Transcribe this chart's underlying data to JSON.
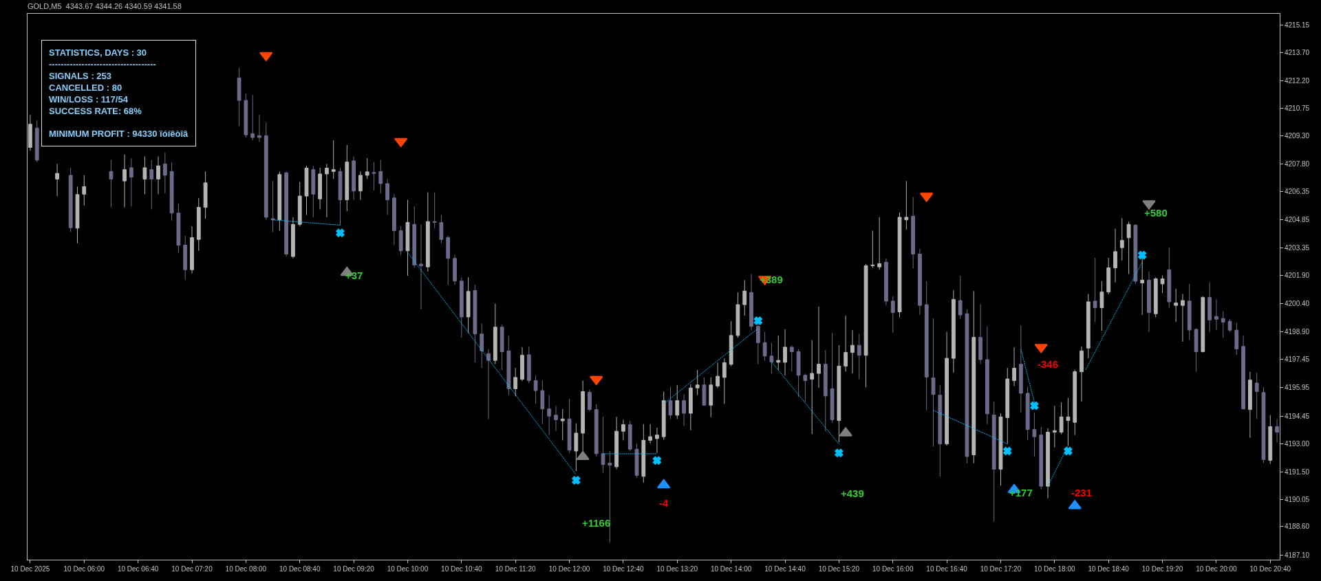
{
  "chart_data": {
    "type": "candlestick",
    "title": "GOLD,M5  4343.67 4344.26 4340.59 4341.58",
    "annotations": [
      "STATISTICS, DAYS : 30",
      "------------------------------------",
      "SIGNALS : 253",
      "CANCELLED : 80",
      "WIN/LOSS : 117/54",
      "SUCCESS RATE: 68%",
      "MINIMUM PROFIT : 94330 ïóíêòîâ",
      {
        "text": "+37",
        "x": "2025-12-10T09:20",
        "y": 4201.9
      },
      {
        "text": "+389",
        "x": "2025-12-10T14:30",
        "y": 4201.7
      },
      {
        "text": "+177",
        "x": "2025-12-10T17:35",
        "y": 4190.4
      },
      "+1166",
      "-4",
      "+439",
      "-346",
      "-231",
      "+580"
    ],
    "colors": [
      "#b4b4b4",
      "#6b6b8a",
      "#b4b4b4",
      "#6b6b8a",
      "#b4b4b4",
      "#b4b4b4",
      "#6b6b8a",
      "#b4b4b4",
      "#6b6b8a",
      "#b4b4b4",
      "#6b6b8a",
      "#b4b4b4",
      "#6b6b8a",
      "#6b6b8a",
      "#6b6b8a",
      "#6b6b8a",
      "#b4b4b4",
      "#b4b4b4",
      "#b4b4b4",
      "#6b6b8a",
      "#6b6b8a",
      "#6b6b8a",
      "#6b6b8a",
      "#6b6b8a",
      "#6b6b8a",
      "#b4b4b4",
      "#6b6b8a",
      "#b4b4b4",
      "#b4b4b4",
      "#b4b4b4",
      "#6b6b8a",
      "#b4b4b4",
      "#b4b4b4",
      "#b4b4b4",
      "#6b6b8a",
      "#b4b4b4",
      "#6b6b8a",
      "#b4b4b4",
      "#b4b4b4",
      "#6b6b8a",
      "#6b6b8a",
      "#6b6b8a",
      "#6b6b8a",
      "#6b6b8a",
      "#b4b4b4",
      "#6b6b8a",
      "#6b6b8a",
      "#b4b4b4",
      "#6b6b8a",
      "#6b6b8a",
      "#6b6b8a",
      "#6b6b8a",
      "#6b6b8a",
      "#b4b4b4",
      "#6b6b8a",
      "#6b6b8a",
      "#6b6b8a",
      "#b4b4b4",
      "#6b6b8a",
      "#6b6b8a",
      "#b4b4b4",
      "#b4b4b4",
      "#6b6b8a",
      "#6b6b8a",
      "#6b6b8a",
      "#6b6b8a",
      "#6b6b8a",
      "#b4b4b4",
      "#6b6b8a",
      "#b4b4b4",
      "#b4b4b4",
      "#6b6b8a",
      "#6b6b8a",
      "#6b6b8a",
      "#6b6b8a",
      "#b4b4b4",
      "#b4b4b4",
      "#6b6b8a",
      "#6b6b8a",
      "#b4b4b4",
      "#b4b4b4",
      "#b4b4b4",
      "#b4b4b4",
      "#6b6b8a",
      "#b4b4b4",
      "#6b6b8a",
      "#b4b4b4",
      "#b4b4b4",
      "#6b6b8a",
      "#b4b4b4",
      "#b4b4b4",
      "#b4b4b4",
      "#b4b4b4",
      "#b4b4b4",
      "#b4b4b4",
      "#6b6b8a",
      "#6b6b8a",
      "#6b6b8a",
      "#6b6b8a",
      "#b4b4b4",
      "#b4b4b4",
      "#6b6b8a",
      "#6b6b8a",
      "#6b6b8a",
      "#b4b4b4",
      "#b4b4b4",
      "#6b6b8a",
      "#6b6b8a",
      "#b4b4b4",
      "#b4b4b4",
      "#b4b4b4",
      "#6b6b8a",
      "#b4b4b4",
      "#b4b4b4",
      "#b4b4b4",
      "#6b6b8a",
      "#6b6b8a",
      "#b4b4b4",
      "#b4b4b4",
      "#6b6b8a",
      "#6b6b8a",
      "#6b6b8a",
      "#6b6b8a",
      "#6b6b8a",
      "#b4b4b4",
      "#b4b4b4",
      "#6b6b8a",
      "#6b6b8a",
      "#b4b4b4",
      "#6b6b8a",
      "#6b6b8a",
      "#6b6b8a",
      "#b4b4b4",
      "#b4b4b4",
      "#b4b4b4",
      "#6b6b8a",
      "#6b6b8a",
      "#6b6b8a",
      "#6b6b8a",
      "#b4b4b4",
      "#b4b4b4",
      "#b4b4b4",
      "#b4b4b4",
      "#b4b4b4",
      "#b4b4b4",
      "#b4b4b4",
      "#6b6b8a",
      "#b4b4b4",
      "#b4b4b4",
      "#b4b4b4",
      "#b4b4b4",
      "#b4b4b4",
      "#6b6b8a",
      "#b4b4b4",
      "#6b6b8a",
      "#b4b4b4",
      "#b4b4b4",
      "#6b6b8a",
      "#b4b4b4",
      "#b4b4b4",
      "#6b6b8a",
      "#6b6b8a",
      "#b4b4b4",
      "#6b6b8a",
      "#6b6b8a",
      "#6b6b8a",
      "#6b6b8a",
      "#6b6b8a",
      "#6b6b8a",
      "#b4b4b4",
      "#6b6b8a",
      "#6b6b8a",
      "#b4b4b4",
      "#6b6b8a"
    ],
    "x": [
      "2025-12-10T05:20",
      "2025-12-10T05:25",
      "2025-12-10T05:40",
      "2025-12-10T05:50",
      "2025-12-10T05:55",
      "2025-12-10T06:00",
      "2025-12-10T06:20",
      "2025-12-10T06:30",
      "2025-12-10T06:35",
      "2025-12-10T06:45",
      "2025-12-10T06:50",
      "2025-12-10T06:55",
      "2025-12-10T07:00",
      "2025-12-10T07:05",
      "2025-12-10T07:10",
      "2025-12-10T07:15",
      "2025-12-10T07:20",
      "2025-12-10T07:25",
      "2025-12-10T07:30",
      "2025-12-10T07:55",
      "2025-12-10T08:00",
      "2025-12-10T08:05",
      "2025-12-10T08:10",
      "2025-12-10T08:15",
      "2025-12-10T08:20",
      "2025-12-10T08:25",
      "2025-12-10T08:30",
      "2025-12-10T08:35",
      "2025-12-10T08:40",
      "2025-12-10T08:45",
      "2025-12-10T08:50",
      "2025-12-10T08:55",
      "2025-12-10T09:00",
      "2025-12-10T09:05",
      "2025-12-10T09:10",
      "2025-12-10T09:15",
      "2025-12-10T09:20",
      "2025-12-10T09:25",
      "2025-12-10T09:30",
      "2025-12-10T09:35",
      "2025-12-10T09:40",
      "2025-12-10T09:45",
      "2025-12-10T09:50",
      "2025-12-10T09:55",
      "2025-12-10T10:00",
      "2025-12-10T10:05",
      "2025-12-10T10:10",
      "2025-12-10T10:15",
      "2025-12-10T10:20",
      "2025-12-10T10:25",
      "2025-12-10T10:30",
      "2025-12-10T10:35",
      "2025-12-10T10:40",
      "2025-12-10T10:45",
      "2025-12-10T10:50",
      "2025-12-10T10:55",
      "2025-12-10T11:00",
      "2025-12-10T11:05",
      "2025-12-10T11:10",
      "2025-12-10T11:15",
      "2025-12-10T11:20",
      "2025-12-10T11:25",
      "2025-12-10T11:30",
      "2025-12-10T11:35",
      "2025-12-10T11:40",
      "2025-12-10T11:45",
      "2025-12-10T11:50",
      "2025-12-10T11:55",
      "2025-12-10T12:00",
      "2025-12-10T12:05",
      "2025-12-10T12:10",
      "2025-12-10T12:15",
      "2025-12-10T12:20",
      "2025-12-10T12:25",
      "2025-12-10T12:30",
      "2025-12-10T12:35",
      "2025-12-10T12:40",
      "2025-12-10T12:45",
      "2025-12-10T12:50",
      "2025-12-10T12:55",
      "2025-12-10T13:00",
      "2025-12-10T13:05",
      "2025-12-10T13:10",
      "2025-12-10T13:15",
      "2025-12-10T13:20",
      "2025-12-10T13:25",
      "2025-12-10T13:30",
      "2025-12-10T13:35",
      "2025-12-10T13:40",
      "2025-12-10T13:45",
      "2025-12-10T13:50",
      "2025-12-10T13:55",
      "2025-12-10T14:00",
      "2025-12-10T14:05",
      "2025-12-10T14:10",
      "2025-12-10T14:15",
      "2025-12-10T14:20",
      "2025-12-10T14:25",
      "2025-12-10T14:30",
      "2025-12-10T14:35",
      "2025-12-10T14:40",
      "2025-12-10T14:45",
      "2025-12-10T14:50",
      "2025-12-10T14:55",
      "2025-12-10T15:00",
      "2025-12-10T15:05",
      "2025-12-10T15:10",
      "2025-12-10T15:15",
      "2025-12-10T15:20",
      "2025-12-10T15:25",
      "2025-12-10T15:30",
      "2025-12-10T15:35",
      "2025-12-10T15:40",
      "2025-12-10T15:45",
      "2025-12-10T15:50",
      "2025-12-10T15:55",
      "2025-12-10T16:00",
      "2025-12-10T16:05",
      "2025-12-10T16:10",
      "2025-12-10T16:15",
      "2025-12-10T16:20",
      "2025-12-10T16:25",
      "2025-12-10T16:30",
      "2025-12-10T16:35",
      "2025-12-10T16:40",
      "2025-12-10T16:45",
      "2025-12-10T16:50",
      "2025-12-10T16:55",
      "2025-12-10T17:00",
      "2025-12-10T17:05",
      "2025-12-10T17:10",
      "2025-12-10T17:15",
      "2025-12-10T17:20",
      "2025-12-10T17:25",
      "2025-12-10T17:30",
      "2025-12-10T17:35",
      "2025-12-10T17:40",
      "2025-12-10T17:45",
      "2025-12-10T17:50",
      "2025-12-10T17:55",
      "2025-12-10T18:00",
      "2025-12-10T18:05",
      "2025-12-10T18:10",
      "2025-12-10T18:15",
      "2025-12-10T18:20",
      "2025-12-10T18:25",
      "2025-12-10T18:30",
      "2025-12-10T18:35",
      "2025-12-10T18:40",
      "2025-12-10T18:45",
      "2025-12-10T18:50",
      "2025-12-10T18:55",
      "2025-12-10T19:00",
      "2025-12-10T19:05",
      "2025-12-10T19:10",
      "2025-12-10T19:15",
      "2025-12-10T19:20",
      "2025-12-10T19:25",
      "2025-12-10T19:30",
      "2025-12-10T19:35",
      "2025-12-10T19:40",
      "2025-12-10T19:45",
      "2025-12-10T19:50",
      "2025-12-10T19:55",
      "2025-12-10T20:00",
      "2025-12-10T20:05",
      "2025-12-10T20:10",
      "2025-12-10T20:15",
      "2025-12-10T20:20",
      "2025-12-10T20:25",
      "2025-12-10T20:30",
      "2025-12-10T20:35",
      "2025-12-10T20:40",
      "2025-12-10T20:45"
    ],
    "ohlc": [
      [
        4208.67,
        4210.4,
        4208.5,
        4209.9
      ],
      [
        4209.7,
        4210.1,
        4207.9,
        4208.0
      ],
      [
        4207.0,
        4207.8,
        4206.1,
        4207.3
      ],
      [
        4207.2,
        4207.6,
        4204.2,
        4204.42
      ],
      [
        4204.4,
        4206.6,
        4203.6,
        4206.18
      ],
      [
        4206.2,
        4207.2,
        4205.6,
        4206.6
      ],
      [
        4207.4,
        4208.0,
        4205.5,
        4207.0
      ],
      [
        4206.9,
        4208.3,
        4205.5,
        4207.5
      ],
      [
        4207.6,
        4208.1,
        4205.55,
        4207.1
      ],
      [
        4207.0,
        4208.2,
        4206.2,
        4207.6
      ],
      [
        4207.5,
        4208.0,
        4205.4,
        4207.0
      ],
      [
        4207.0,
        4208.2,
        4206.2,
        4207.7
      ],
      [
        4207.8,
        4208.4,
        4206.24,
        4207.2
      ],
      [
        4207.4,
        4207.9,
        4204.8,
        4205.2
      ],
      [
        4205.2,
        4205.7,
        4203.1,
        4203.5
      ],
      [
        4203.5,
        4204.0,
        4201.65,
        4202.2
      ],
      [
        4202.2,
        4204.5,
        4202.0,
        4203.9
      ],
      [
        4203.8,
        4206.0,
        4203.2,
        4205.5
      ],
      [
        4205.5,
        4207.4,
        4204.9,
        4206.8
      ],
      [
        4212.35,
        4212.9,
        4209.8,
        4211.16
      ],
      [
        4211.16,
        4211.54,
        4209.2,
        4209.34
      ],
      [
        4209.4,
        4211.45,
        4209.05,
        4209.2
      ],
      [
        4209.3,
        4210.4,
        4208.96,
        4209.2
      ],
      [
        4209.3,
        4210.0,
        4204.84,
        4204.98
      ],
      [
        4204.9,
        4206.9,
        4204.2,
        4204.84
      ],
      [
        4204.84,
        4207.4,
        4204.27,
        4207.24
      ],
      [
        4207.33,
        4207.4,
        4202.9,
        4203.03
      ],
      [
        4202.9,
        4204.98,
        4202.8,
        4204.6
      ],
      [
        4204.6,
        4206.85,
        4204.5,
        4206.1
      ],
      [
        4206.1,
        4207.7,
        4205.1,
        4207.58
      ],
      [
        4207.5,
        4207.7,
        4204.98,
        4206.2
      ],
      [
        4205.95,
        4207.6,
        4205.4,
        4207.27
      ],
      [
        4207.27,
        4207.8,
        4204.98,
        4207.58
      ],
      [
        4207.4,
        4209.05,
        4207.0,
        4207.5
      ],
      [
        4207.4,
        4207.6,
        4204.56,
        4205.9
      ],
      [
        4205.9,
        4208.8,
        4205.3,
        4207.9
      ],
      [
        4207.96,
        4208.2,
        4205.9,
        4206.37
      ],
      [
        4206.37,
        4207.4,
        4205.9,
        4207.2
      ],
      [
        4207.2,
        4208.1,
        4207.0,
        4207.38
      ],
      [
        4207.35,
        4207.9,
        4206.4,
        4207.3
      ],
      [
        4207.4,
        4208.0,
        4206.24,
        4206.76
      ],
      [
        4206.76,
        4207.0,
        4205.1,
        4205.9
      ],
      [
        4206.0,
        4206.2,
        4203.5,
        4204.27
      ],
      [
        4204.27,
        4204.5,
        4203.0,
        4203.2
      ],
      [
        4203.2,
        4205.9,
        4201.88,
        4204.7
      ],
      [
        4204.6,
        4205.55,
        4202.3,
        4202.45
      ],
      [
        4202.5,
        4204.6,
        4200.1,
        4202.4
      ],
      [
        4202.35,
        4206.3,
        4202.1,
        4204.75
      ],
      [
        4204.75,
        4206.3,
        4204.4,
        4204.7
      ],
      [
        4204.7,
        4205.1,
        4203.6,
        4203.8
      ],
      [
        4203.9,
        4204.0,
        4201.4,
        4202.8
      ],
      [
        4202.8,
        4203.0,
        4201.4,
        4201.6
      ],
      [
        4201.6,
        4201.8,
        4198.6,
        4199.7
      ],
      [
        4199.7,
        4201.8,
        4198.85,
        4201.05
      ],
      [
        4201.1,
        4201.4,
        4197.3,
        4198.8
      ],
      [
        4198.8,
        4199.35,
        4197.0,
        4197.9
      ],
      [
        4197.76,
        4198.0,
        4194.3,
        4197.4
      ],
      [
        4197.4,
        4200.4,
        4197.2,
        4199.16
      ],
      [
        4199.16,
        4199.3,
        4196.9,
        4197.86
      ],
      [
        4197.9,
        4198.7,
        4195.56,
        4195.9
      ],
      [
        4195.9,
        4197.0,
        4195.5,
        4196.5
      ],
      [
        4196.4,
        4198.1,
        4196.3,
        4197.67
      ],
      [
        4197.7,
        4198.14,
        4196.2,
        4196.33
      ],
      [
        4196.33,
        4196.6,
        4195.1,
        4195.8
      ],
      [
        4195.8,
        4196.33,
        4194.03,
        4194.83
      ],
      [
        4194.83,
        4195.56,
        4193.45,
        4194.45
      ],
      [
        4194.5,
        4194.99,
        4193.65,
        4194.26
      ],
      [
        4194.2,
        4194.83,
        4193.17,
        4194.3
      ],
      [
        4194.3,
        4195.37,
        4192.5,
        4192.65
      ],
      [
        4192.6,
        4194.07,
        4191.54,
        4193.55
      ],
      [
        4193.55,
        4196.33,
        4192.3,
        4195.75
      ],
      [
        4195.71,
        4195.85,
        4194.7,
        4194.8
      ],
      [
        4194.8,
        4195.08,
        4192.3,
        4192.46
      ],
      [
        4192.46,
        4194.41,
        4191.45,
        4191.88
      ],
      [
        4191.96,
        4192.6,
        4187.75,
        4191.85
      ],
      [
        4191.77,
        4194.41,
        4191.64,
        4193.65
      ],
      [
        4193.65,
        4194.26,
        4193.17,
        4194.0
      ],
      [
        4194.0,
        4194.2,
        4192.6,
        4192.7
      ],
      [
        4192.7,
        4193.0,
        4191.2,
        4191.31
      ],
      [
        4191.26,
        4194.03,
        4190.93,
        4193.17
      ],
      [
        4193.17,
        4194.03,
        4193.0,
        4193.36
      ],
      [
        4193.26,
        4193.84,
        4192.5,
        4193.45
      ],
      [
        4193.36,
        4195.75,
        4193.2,
        4195.27
      ],
      [
        4195.27,
        4196.0,
        4194.3,
        4194.5
      ],
      [
        4194.5,
        4196.1,
        4194.3,
        4195.27
      ],
      [
        4195.27,
        4195.6,
        4193.93,
        4194.6
      ],
      [
        4194.6,
        4196.14,
        4193.7,
        4195.94
      ],
      [
        4195.94,
        4196.9,
        4195.56,
        4196.1
      ],
      [
        4196.1,
        4196.5,
        4195.0,
        4195.03
      ],
      [
        4195.03,
        4196.5,
        4194.4,
        4196.1
      ],
      [
        4196.04,
        4197.28,
        4195.94,
        4196.56
      ],
      [
        4196.5,
        4197.5,
        4195.1,
        4197.28
      ],
      [
        4197.19,
        4199.48,
        4197.1,
        4198.72
      ],
      [
        4198.72,
        4201.0,
        4198.6,
        4200.35
      ],
      [
        4200.35,
        4201.65,
        4199.77,
        4201.07
      ],
      [
        4201.0,
        4201.97,
        4199.0,
        4199.2
      ],
      [
        4199.2,
        4199.4,
        4197.19,
        4198.34
      ],
      [
        4198.34,
        4198.9,
        4197.38,
        4197.63
      ],
      [
        4197.63,
        4198.34,
        4196.71,
        4197.32
      ],
      [
        4197.3,
        4198.72,
        4196.9,
        4197.4
      ],
      [
        4197.3,
        4199.04,
        4196.6,
        4198.1
      ],
      [
        4198.1,
        4198.2,
        4196.8,
        4197.86
      ],
      [
        4197.86,
        4198.0,
        4195.47,
        4196.61
      ],
      [
        4196.61,
        4196.7,
        4195.2,
        4196.33
      ],
      [
        4196.4,
        4198.47,
        4193.5,
        4196.71
      ],
      [
        4196.71,
        4200.25,
        4195.94,
        4197.2
      ],
      [
        4197.2,
        4197.95,
        4193.65,
        4195.52
      ],
      [
        4195.9,
        4198.85,
        4194.1,
        4194.26
      ],
      [
        4194.22,
        4198.2,
        4193.07,
        4197.1
      ],
      [
        4197.1,
        4199.77,
        4196.8,
        4197.82
      ],
      [
        4197.82,
        4199.0,
        4196.71,
        4198.2
      ],
      [
        4198.2,
        4198.8,
        4196.4,
        4197.67
      ],
      [
        4197.67,
        4202.5,
        4195.98,
        4202.41
      ],
      [
        4202.41,
        4204.27,
        4202.3,
        4202.45
      ],
      [
        4202.35,
        4204.98,
        4202.2,
        4202.52
      ],
      [
        4202.6,
        4202.8,
        4200.3,
        4200.54
      ],
      [
        4200.54,
        4200.8,
        4198.85,
        4199.93
      ],
      [
        4199.97,
        4205.23,
        4199.68,
        4204.98
      ],
      [
        4204.84,
        4206.89,
        4204.33,
        4204.98
      ],
      [
        4205.03,
        4206.05,
        4202.26,
        4203.03
      ],
      [
        4203.03,
        4203.31,
        4199.81,
        4200.31
      ],
      [
        4200.35,
        4201.59,
        4194.76,
        4196.52
      ],
      [
        4196.48,
        4199.62,
        4192.84,
        4195.6
      ],
      [
        4195.56,
        4196.1,
        4191.25,
        4192.98
      ],
      [
        4192.98,
        4198.91,
        4192.88,
        4197.51
      ],
      [
        4197.51,
        4201.11,
        4196.75,
        4200.63
      ],
      [
        4200.57,
        4201.88,
        4199.6,
        4199.81
      ],
      [
        4199.87,
        4200.1,
        4191.96,
        4192.31
      ],
      [
        4192.4,
        4201.07,
        4191.96,
        4198.62
      ],
      [
        4198.62,
        4200.38,
        4197.2,
        4197.44
      ],
      [
        4197.44,
        4199.2,
        4194.03,
        4194.57
      ],
      [
        4194.51,
        4195.22,
        4188.86,
        4191.64
      ],
      [
        4191.64,
        4194.6,
        4190.77,
        4194.41
      ],
      [
        4194.37,
        4197.0,
        4192.98,
        4196.42
      ],
      [
        4196.33,
        4198.09,
        4196.04,
        4196.99
      ],
      [
        4197.2,
        4199.24,
        4194.64,
        4195.66
      ],
      [
        4195.66,
        4196.0,
        4193.17,
        4193.74
      ],
      [
        4193.74,
        4194.64,
        4192.31,
        4193.36
      ],
      [
        4193.45,
        4193.88,
        4190.58,
        4190.74
      ],
      [
        4190.74,
        4193.8,
        4190.1,
        4193.6
      ],
      [
        4193.6,
        4194.99,
        4192.79,
        4193.68
      ],
      [
        4193.6,
        4195.18,
        4193.49,
        4194.41
      ],
      [
        4194.22,
        4195.41,
        4192.88,
        4194.41
      ],
      [
        4194.12,
        4196.9,
        4193.45,
        4196.8
      ],
      [
        4196.8,
        4198.14,
        4195.22,
        4197.9
      ],
      [
        4198.05,
        4200.92,
        4197.51,
        4200.5
      ],
      [
        4200.54,
        4202.83,
        4199.43,
        4200.19
      ],
      [
        4200.19,
        4201.59,
        4198.97,
        4201.02
      ],
      [
        4201.02,
        4202.83,
        4200.9,
        4202.3
      ],
      [
        4202.3,
        4204.37,
        4201.53,
        4203.16
      ],
      [
        4203.37,
        4204.93,
        4202.7,
        4203.75
      ],
      [
        4203.89,
        4204.75,
        4201.97,
        4204.6
      ],
      [
        4204.56,
        4204.6,
        4201.45,
        4201.59
      ],
      [
        4201.5,
        4202.8,
        4199.81,
        4201.65
      ],
      [
        4201.65,
        4202.1,
        4198.91,
        4199.93
      ],
      [
        4199.87,
        4201.8,
        4199.68,
        4201.72
      ],
      [
        4201.45,
        4201.9,
        4200.96,
        4201.72
      ],
      [
        4202.2,
        4203.37,
        4200.19,
        4200.5
      ],
      [
        4200.31,
        4201.2,
        4199.43,
        4200.44
      ],
      [
        4200.31,
        4200.92,
        4198.39,
        4200.57
      ],
      [
        4200.54,
        4201.45,
        4198.47,
        4199.01
      ],
      [
        4199.04,
        4199.1,
        4196.8,
        4197.86
      ],
      [
        4197.86,
        4200.8,
        4197.82,
        4200.73
      ],
      [
        4200.73,
        4201.53,
        4198.91,
        4199.54
      ],
      [
        4199.73,
        4200.63,
        4199.0,
        4199.58
      ],
      [
        4199.62,
        4200.0,
        4198.6,
        4199.43
      ],
      [
        4199.47,
        4199.58,
        4198.9,
        4199.0
      ],
      [
        4199.0,
        4199.39,
        4197.7,
        4198.01
      ],
      [
        4198.14,
        4198.72,
        4194.8,
        4194.83
      ],
      [
        4194.8,
        4196.8,
        4193.3,
        4196.36
      ],
      [
        4196.2,
        4196.75,
        4194.3,
        4195.75
      ],
      [
        4195.7,
        4195.98,
        4191.96,
        4192.15
      ],
      [
        4192.11,
        4194.51,
        4191.92,
        4193.89
      ],
      [
        4193.89,
        4194.3,
        4193.07,
        4193.6
      ]
    ],
    "series": [
      {
        "type": "line",
        "color": "#00bfff",
        "line_style": "dotted",
        "marker": "none",
        "x": [
          "2025-12-10T08:20",
          "2025-12-10T09:10"
        ],
        "values": [
          4204.84,
          4204.56
        ]
      },
      {
        "type": "line",
        "color": "#00bfff",
        "line_style": "dotted",
        "marker": "none",
        "x": [
          "2025-12-10T10:00",
          "2025-12-10T12:05"
        ],
        "values": [
          4203.12,
          4191.35
        ]
      },
      {
        "type": "line",
        "color": "#00bfff",
        "line_style": "dotted",
        "marker": "none",
        "x": [
          "2025-12-10T12:25",
          "2025-12-10T13:05"
        ],
        "values": [
          4192.46,
          4192.46
        ]
      },
      {
        "type": "line",
        "color": "#00bfff",
        "line_style": "dotted",
        "marker": "none",
        "x": [
          "2025-12-10T13:10",
          "2025-12-10T14:20"
        ],
        "values": [
          4195.1,
          4199.1
        ]
      },
      {
        "type": "line",
        "color": "#00bfff",
        "line_style": "dotted",
        "marker": "none",
        "x": [
          "2025-12-10T14:30",
          "2025-12-10T15:20"
        ],
        "values": [
          4197.32,
          4192.97
        ]
      },
      {
        "type": "line",
        "color": "#00bfff",
        "line_style": "dotted",
        "marker": "none",
        "x": [
          "2025-12-10T16:30",
          "2025-12-10T17:25"
        ],
        "values": [
          4194.76,
          4192.98
        ]
      },
      {
        "type": "line",
        "color": "#00bfff",
        "line_style": "dotted",
        "marker": "none",
        "x": [
          "2025-12-10T17:35",
          "2025-12-10T17:45"
        ],
        "values": [
          4198.0,
          4195.18
        ]
      },
      {
        "type": "line",
        "color": "#00bfff",
        "line_style": "dotted",
        "marker": "none",
        "x": [
          "2025-12-10T17:55",
          "2025-12-10T18:10"
        ],
        "values": [
          4190.74,
          4192.88
        ]
      },
      {
        "type": "line",
        "color": "#00bfff",
        "line_style": "dotted",
        "marker": "none",
        "x": [
          "2025-12-10T18:23",
          "2025-12-10T19:05"
        ],
        "values": [
          4196.9,
          4202.6
        ]
      },
      {
        "type": "scatter",
        "color": "#00bfff",
        "marker": "cross",
        "x": [
          "2025-12-10T09:10",
          "2025-12-10T12:05",
          "2025-12-10T13:05",
          "2025-12-10T14:20",
          "2025-12-10T15:20",
          "2025-12-10T17:25",
          "2025-12-10T17:45",
          "2025-12-10T18:10",
          "2025-12-10T19:05"
        ],
        "values": [
          4204.15,
          4191.05,
          4192.1,
          4199.5,
          4192.5,
          4192.6,
          4195.0,
          4192.6,
          4202.97
        ]
      },
      {
        "type": "scatter",
        "color": "#ff4500",
        "marker": "triangle",
        "x": [
          "2025-12-10T08:15",
          "2025-12-10T09:55",
          "2025-12-10T12:20",
          "2025-12-10T14:25",
          "2025-12-10T16:25",
          "2025-12-10T17:50"
        ],
        "values": [
          4213.55,
          4209.0,
          4196.4,
          4201.7,
          4206.1,
          4198.1
        ]
      },
      {
        "type": "scatter",
        "color": "#808080",
        "marker": "triangle",
        "x": [
          "2025-12-10T09:15",
          "2025-12-10T12:10",
          "2025-12-10T15:25",
          "2025-12-10T19:10"
        ],
        "values": [
          4202.05,
          4192.3,
          4193.55,
          4205.7
        ]
      },
      {
        "type": "scatter",
        "color": "#1e90ff",
        "marker": "triangle",
        "x": [
          "2025-12-10T13:10",
          "2025-12-10T17:30",
          "2025-12-10T18:15"
        ],
        "values": [
          4190.8,
          4190.55,
          4189.7
        ]
      }
    ],
    "xlim": [
      "2025-12-10T05:18",
      "2025-12-10T20:47"
    ],
    "xticks": [
      {
        "value": "2025-12-10T05:20",
        "label": "10 Dec 2025"
      },
      {
        "value": "2025-12-10T06:00",
        "label": "10 Dec 06:00"
      },
      {
        "value": "2025-12-10T06:40",
        "label": "10 Dec 06:40"
      },
      {
        "value": "2025-12-10T07:20",
        "label": "10 Dec 07:20"
      },
      {
        "value": "2025-12-10T08:00",
        "label": "10 Dec 08:00"
      },
      {
        "value": "2025-12-10T08:40",
        "label": "10 Dec 08:40"
      },
      {
        "value": "2025-12-10T09:20",
        "label": "10 Dec 09:20"
      },
      {
        "value": "2025-12-10T10:00",
        "label": "10 Dec 10:00"
      },
      {
        "value": "2025-12-10T10:40",
        "label": "10 Dec 10:40"
      },
      {
        "value": "2025-12-10T11:20",
        "label": "10 Dec 11:20"
      },
      {
        "value": "2025-12-10T12:00",
        "label": "10 Dec 12:00"
      },
      {
        "value": "2025-12-10T12:40",
        "label": "10 Dec 12:40"
      },
      {
        "value": "2025-12-10T13:20",
        "label": "10 Dec 13:20"
      },
      {
        "value": "2025-12-10T14:00",
        "label": "10 Dec 14:00"
      },
      {
        "value": "2025-12-10T14:40",
        "label": "10 Dec 14:40"
      },
      {
        "value": "2025-12-10T15:20",
        "label": "10 Dec 15:20"
      },
      {
        "value": "2025-12-10T16:00",
        "label": "10 Dec 16:00"
      },
      {
        "value": "2025-12-10T16:40",
        "label": "10 Dec 16:40"
      },
      {
        "value": "2025-12-10T17:20",
        "label": "10 Dec 17:20"
      },
      {
        "value": "2025-12-10T18:00",
        "label": "10 Dec 18:00"
      },
      {
        "value": "2025-12-10T18:40",
        "label": "10 Dec 18:40"
      },
      {
        "value": "2025-12-10T19:20",
        "label": "10 Dec 19:20"
      },
      {
        "value": "2025-12-10T20:00",
        "label": "10 Dec 20:00"
      },
      {
        "value": "2025-12-10T20:40",
        "label": "10 Dec 20:40"
      }
    ],
    "ylim": [
      4186.85,
      4215.75
    ],
    "yticks": [
      4215.15,
      {
        "value": 4213.7,
        "label": "4213.70"
      },
      {
        "value": 4212.2,
        "label": "4212.20"
      },
      4210.75,
      {
        "value": 4209.3,
        "label": "4209.30"
      },
      {
        "value": 4207.8,
        "label": "4207.80"
      },
      4206.35,
      4204.85,
      4203.35,
      {
        "value": 4201.9,
        "label": "4201.90"
      },
      {
        "value": 4200.4,
        "label": "4200.40"
      },
      {
        "value": 4198.9,
        "label": "4198.90"
      },
      4197.45,
      4195.95,
      4194.45,
      {
        "value": 4193.0,
        "label": "4193.00"
      },
      {
        "value": 4191.5,
        "label": "4191.50"
      },
      4190.05,
      {
        "value": 4188.6,
        "label": "4188.60"
      },
      {
        "value": 4187.1,
        "label": "4187.10"
      }
    ]
  }
}
